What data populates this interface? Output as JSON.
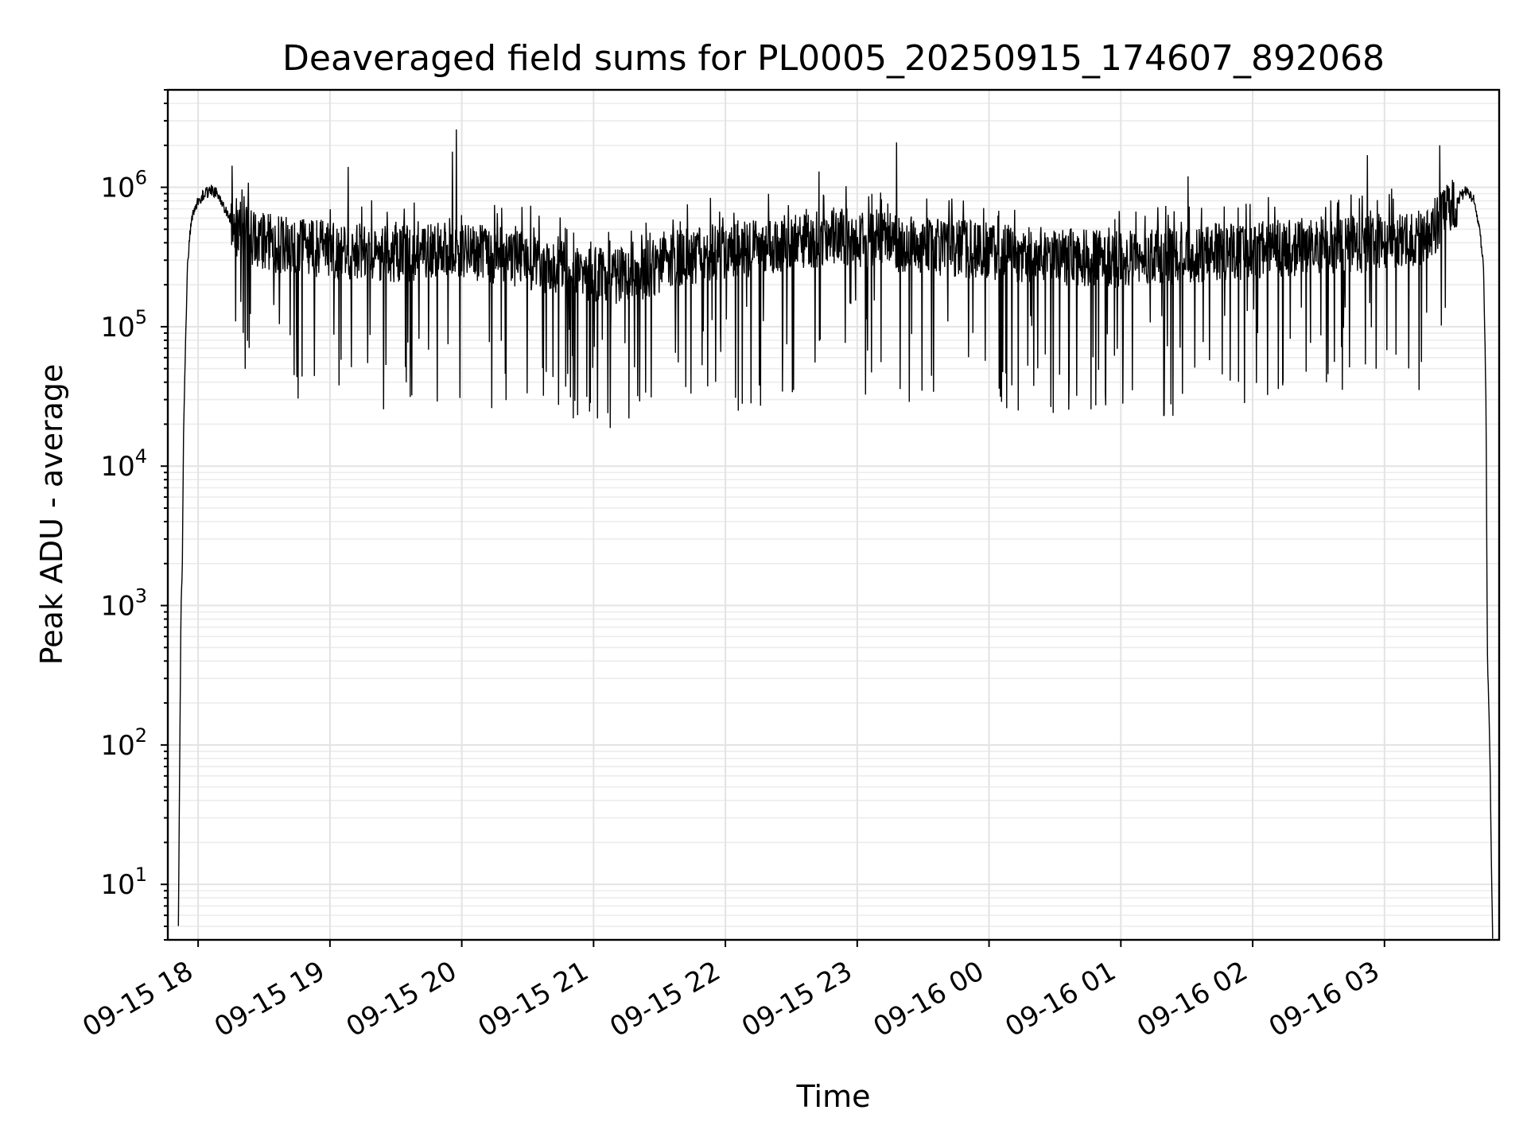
{
  "chart_data": {
    "type": "line",
    "title": "Deaveraged field sums for PL0005_20250915_174607_892068",
    "xlabel": "Time",
    "ylabel": "Peak ADU - average",
    "yscale": "log",
    "ylim": [
      4,
      5000000
    ],
    "xlim_hours": [
      17.77,
      27.87
    ],
    "grid": "on",
    "x_tick_hours": [
      18,
      19,
      20,
      21,
      22,
      23,
      24,
      25,
      26,
      27
    ],
    "x_tick_labels": [
      "09-15 18",
      "09-15 19",
      "09-15 20",
      "09-15 21",
      "09-15 22",
      "09-15 23",
      "09-16 00",
      "09-16 01",
      "09-16 02",
      "09-16 03"
    ],
    "y_ticks": [
      {
        "value": 10,
        "base": "10",
        "exp": "1"
      },
      {
        "value": 100,
        "base": "10",
        "exp": "2"
      },
      {
        "value": 1000,
        "base": "10",
        "exp": "3"
      },
      {
        "value": 10000,
        "base": "10",
        "exp": "4"
      },
      {
        "value": 100000,
        "base": "10",
        "exp": "5"
      },
      {
        "value": 1000000,
        "base": "10",
        "exp": "6"
      }
    ],
    "series": [
      {
        "name": "deaveraged field sum",
        "color": "#000000",
        "envelope": {
          "hours": [
            17.85,
            17.87,
            17.88,
            17.89,
            17.92,
            17.95,
            18.0,
            18.05,
            18.1,
            18.15,
            18.2,
            18.3,
            18.5,
            19.0,
            19.5,
            20.0,
            20.5,
            20.8,
            21.0,
            21.3,
            21.6,
            22.0,
            22.5,
            22.8,
            23.0,
            23.5,
            24.0,
            24.5,
            25.0,
            25.5,
            26.0,
            26.5,
            27.0,
            27.3,
            27.45,
            27.55,
            27.62,
            27.68,
            27.72,
            27.75,
            27.77,
            27.78,
            27.79,
            27.8,
            27.82
          ],
          "values": [
            5,
            1000,
            2000,
            20000,
            300000,
            600000,
            800000,
            900000,
            950000,
            900000,
            700000,
            500000,
            400000,
            350000,
            330000,
            360000,
            300000,
            250000,
            230000,
            240000,
            300000,
            350000,
            400000,
            450000,
            430000,
            380000,
            350000,
            320000,
            300000,
            330000,
            350000,
            380000,
            400000,
            450000,
            600000,
            800000,
            950000,
            800000,
            500000,
            300000,
            30000,
            500,
            200,
            80,
            4
          ]
        },
        "spikes": [
          {
            "hour": 19.96,
            "value": 2600000
          },
          {
            "hour": 19.93,
            "value": 1800000
          },
          {
            "hour": 23.3,
            "value": 2100000
          },
          {
            "hour": 27.42,
            "value": 2000000
          },
          {
            "hour": 26.87,
            "value": 1700000
          },
          {
            "hour": 19.14,
            "value": 1400000
          },
          {
            "hour": 22.71,
            "value": 1300000
          },
          {
            "hour": 25.51,
            "value": 1200000
          },
          {
            "hour": 21.03,
            "value": 22000
          },
          {
            "hour": 21.27,
            "value": 22000
          },
          {
            "hour": 21.11,
            "value": 24000
          },
          {
            "hour": 22.1,
            "value": 25000
          },
          {
            "hour": 22.13,
            "value": 28000
          },
          {
            "hour": 20.62,
            "value": 32000
          },
          {
            "hour": 19.58,
            "value": 40000
          },
          {
            "hour": 18.73,
            "value": 45000
          },
          {
            "hour": 19.07,
            "value": 38000
          },
          {
            "hour": 25.09,
            "value": 35000
          },
          {
            "hour": 25.47,
            "value": 33000
          },
          {
            "hour": 26.23,
            "value": 38000
          },
          {
            "hour": 26.56,
            "value": 40000
          },
          {
            "hour": 24.61,
            "value": 42000
          },
          {
            "hour": 25.83,
            "value": 41000
          },
          {
            "hour": 20.33,
            "value": 46000
          }
        ]
      }
    ]
  }
}
